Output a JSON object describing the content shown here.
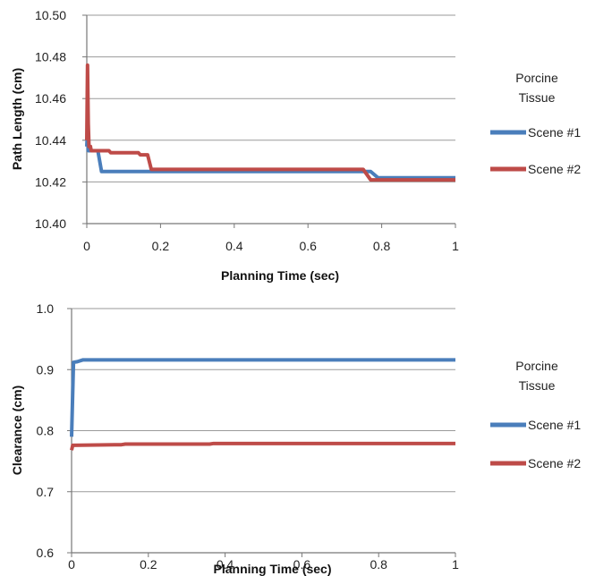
{
  "chart_data": [
    {
      "type": "line",
      "title": "",
      "xlabel": "Planning Time (sec)",
      "ylabel": "Path Length (cm)",
      "xlim": [
        0,
        1
      ],
      "ylim": [
        10.4,
        10.5
      ],
      "xticks": [
        0,
        0.2,
        0.4,
        0.6,
        0.8,
        1
      ],
      "xtick_labels": [
        "0",
        "0.2",
        "0.4",
        "0.6",
        "0.8",
        "1"
      ],
      "yticks": [
        10.4,
        10.42,
        10.44,
        10.46,
        10.48,
        10.5
      ],
      "ytick_labels": [
        "10.40",
        "10.42",
        "10.44",
        "10.46",
        "10.48",
        "10.50"
      ],
      "grid": "horizontal",
      "legend": {
        "title": "Porcine\nTissue",
        "title_lines": [
          "Porcine",
          "Tissue"
        ],
        "placement": "right"
      },
      "series": [
        {
          "name": "Scene #1",
          "color": "#4a7ebb",
          "points": [
            [
              0,
              10.437
            ],
            [
              0.002,
              10.445
            ],
            [
              0.004,
              10.435
            ],
            [
              0.03,
              10.435
            ],
            [
              0.04,
              10.425
            ],
            [
              0.77,
              10.425
            ],
            [
              0.79,
              10.422
            ],
            [
              1,
              10.422
            ]
          ]
        },
        {
          "name": "Scene #2",
          "color": "#be4b48",
          "points": [
            [
              0,
              10.44
            ],
            [
              0.002,
              10.476
            ],
            [
              0.004,
              10.448
            ],
            [
              0.006,
              10.437
            ],
            [
              0.01,
              10.437
            ],
            [
              0.012,
              10.435
            ],
            [
              0.06,
              10.435
            ],
            [
              0.065,
              10.434
            ],
            [
              0.14,
              10.434
            ],
            [
              0.145,
              10.433
            ],
            [
              0.165,
              10.433
            ],
            [
              0.175,
              10.426
            ],
            [
              0.75,
              10.426
            ],
            [
              0.77,
              10.421
            ],
            [
              1,
              10.421
            ]
          ]
        }
      ]
    },
    {
      "type": "line",
      "title": "",
      "xlabel": "Planning Time (sec)",
      "ylabel": "Clearance (cm)",
      "xlim": [
        0,
        1
      ],
      "ylim": [
        0.6,
        1.0
      ],
      "xticks": [
        0,
        0.2,
        0.4,
        0.6,
        0.8,
        1
      ],
      "xtick_labels": [
        "0",
        "0.2",
        "0.4",
        "0.6",
        "0.8",
        "1"
      ],
      "yticks": [
        0.6,
        0.7,
        0.8,
        0.9,
        1.0
      ],
      "ytick_labels": [
        "0.6",
        "0.7",
        "0.8",
        "0.9",
        "1.0"
      ],
      "grid": "horizontal",
      "legend": {
        "title": "Porcine\nTissue",
        "title_lines": [
          "Porcine",
          "Tissue"
        ],
        "placement": "right"
      },
      "series": [
        {
          "name": "Scene #1",
          "color": "#4a7ebb",
          "points": [
            [
              0,
              0.79
            ],
            [
              0.005,
              0.912
            ],
            [
              0.015,
              0.913
            ],
            [
              0.03,
              0.916
            ],
            [
              1,
              0.916
            ]
          ]
        },
        {
          "name": "Scene #2",
          "color": "#be4b48",
          "points": [
            [
              0,
              0.768
            ],
            [
              0.003,
              0.776
            ],
            [
              0.13,
              0.777
            ],
            [
              0.14,
              0.778
            ],
            [
              0.36,
              0.778
            ],
            [
              0.37,
              0.779
            ],
            [
              1,
              0.779
            ]
          ]
        }
      ]
    }
  ]
}
